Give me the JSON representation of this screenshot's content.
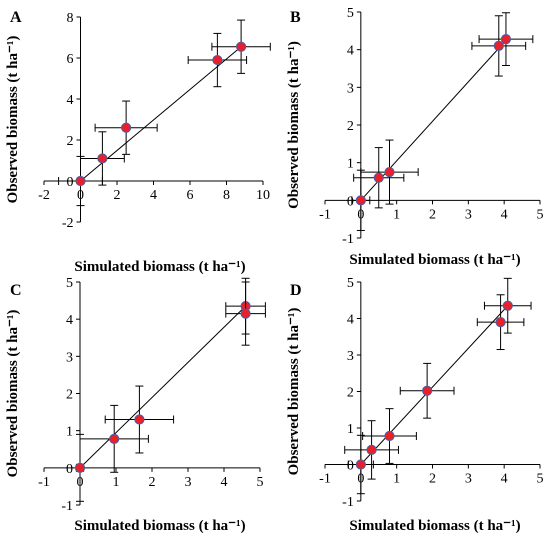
{
  "chart_data": [
    {
      "panel": "A",
      "type": "scatter",
      "xlabel": "Simulated biomass (t ha⁻¹)",
      "ylabel": "Observed biomass (t ha⁻¹)",
      "xlim": [
        -2,
        10
      ],
      "ylim": [
        -2,
        8
      ],
      "xticks": [
        -2,
        0,
        2,
        4,
        6,
        8,
        10
      ],
      "yticks": [
        -2,
        0,
        2,
        4,
        6,
        8
      ],
      "xtick_labels": [
        "-2",
        "0",
        "2",
        "4",
        "6",
        "8",
        "10"
      ],
      "ytick_labels": [
        "-2",
        "0",
        "2",
        "4",
        "6",
        "8"
      ],
      "fit_line": [
        [
          0,
          0
        ],
        [
          8.8,
          6.55
        ]
      ],
      "points": [
        {
          "x": 0,
          "y": 0,
          "xerr": 1.2,
          "yerr": 1.2
        },
        {
          "x": 1.2,
          "y": 1.1,
          "xerr": 1.2,
          "yerr": 1.3
        },
        {
          "x": 2.5,
          "y": 2.6,
          "xerr": 1.7,
          "yerr": 1.3
        },
        {
          "x": 7.5,
          "y": 5.9,
          "xerr": 1.6,
          "yerr": 1.3
        },
        {
          "x": 8.8,
          "y": 6.55,
          "xerr": 1.6,
          "yerr": 1.3
        }
      ]
    },
    {
      "panel": "B",
      "type": "scatter",
      "xlabel": "Simulated biomass (t ha⁻¹)",
      "ylabel": "Observed biomass (t ha⁻¹)",
      "xlim": [
        -1,
        5
      ],
      "ylim": [
        -1,
        5
      ],
      "xticks": [
        -1,
        0,
        1,
        2,
        3,
        4,
        5
      ],
      "yticks": [
        -1,
        0,
        1,
        2,
        3,
        4,
        5
      ],
      "xtick_labels": [
        "-1",
        "0",
        "1",
        "2",
        "3",
        "4",
        "5"
      ],
      "ytick_labels": [
        "-1",
        "0",
        "1",
        "2",
        "3",
        "4",
        "5"
      ],
      "fit_line": [
        [
          0,
          0
        ],
        [
          4.1,
          4.3
        ]
      ],
      "points": [
        {
          "x": 0,
          "y": 0,
          "xerr": 0.25,
          "yerr": 0.8
        },
        {
          "x": 0.5,
          "y": 0.6,
          "xerr": 0.7,
          "yerr": 0.8
        },
        {
          "x": 0.8,
          "y": 0.75,
          "xerr": 0.8,
          "yerr": 0.85
        },
        {
          "x": 3.85,
          "y": 4.1,
          "xerr": 0.75,
          "yerr": 0.8
        },
        {
          "x": 4.05,
          "y": 4.28,
          "xerr": 0.75,
          "yerr": 0.7
        }
      ]
    },
    {
      "panel": "C",
      "type": "scatter",
      "xlabel": "Simulated biomass (t ha⁻¹)",
      "ylabel": "Observed biomass (t ha⁻¹)",
      "xlim": [
        -1,
        5
      ],
      "ylim": [
        -1,
        5
      ],
      "xticks": [
        -1,
        0,
        1,
        2,
        3,
        4,
        5
      ],
      "yticks": [
        -1,
        0,
        1,
        2,
        3,
        4,
        5
      ],
      "xtick_labels": [
        "-1",
        "0",
        "1",
        "2",
        "3",
        "4",
        "5"
      ],
      "ytick_labels": [
        "-1",
        "0",
        "1",
        "2",
        "3",
        "4",
        "5"
      ],
      "fit_line": [
        [
          0,
          0
        ],
        [
          4.6,
          4.35
        ]
      ],
      "points": [
        {
          "x": 0,
          "y": 0,
          "xerr": 0.1,
          "yerr": 0.9
        },
        {
          "x": 0.95,
          "y": 0.78,
          "xerr": 0.95,
          "yerr": 0.9
        },
        {
          "x": 1.65,
          "y": 1.3,
          "xerr": 0.95,
          "yerr": 0.9
        },
        {
          "x": 4.6,
          "y": 4.35,
          "xerr": 0.55,
          "yerr": 0.75
        },
        {
          "x": 4.6,
          "y": 4.15,
          "xerr": 0.55,
          "yerr": 0.85
        }
      ]
    },
    {
      "panel": "D",
      "type": "scatter",
      "xlabel": "Simulated biomass (t ha⁻¹)",
      "ylabel": "Observed biomass (t ha⁻¹)",
      "xlim": [
        -1,
        5
      ],
      "ylim": [
        -1,
        5
      ],
      "xticks": [
        -1,
        0,
        1,
        2,
        3,
        4,
        5
      ],
      "yticks": [
        -1,
        0,
        1,
        2,
        3,
        4,
        5
      ],
      "xtick_labels": [
        "-1",
        "0",
        "1",
        "2",
        "3",
        "4",
        "5"
      ],
      "ytick_labels": [
        "-1",
        "0",
        "1",
        "2",
        "3",
        "4",
        "5"
      ],
      "fit_line": [
        [
          0,
          0
        ],
        [
          4.1,
          4.35
        ]
      ],
      "points": [
        {
          "x": 0,
          "y": 0,
          "xerr": 0.35,
          "yerr": 0.8
        },
        {
          "x": 0.3,
          "y": 0.4,
          "xerr": 0.75,
          "yerr": 0.8
        },
        {
          "x": 0.8,
          "y": 0.78,
          "xerr": 0.75,
          "yerr": 0.75
        },
        {
          "x": 1.85,
          "y": 2.02,
          "xerr": 0.75,
          "yerr": 0.75
        },
        {
          "x": 3.9,
          "y": 3.9,
          "xerr": 0.65,
          "yerr": 0.75
        },
        {
          "x": 4.1,
          "y": 4.35,
          "xerr": 0.65,
          "yerr": 0.75
        }
      ]
    }
  ]
}
